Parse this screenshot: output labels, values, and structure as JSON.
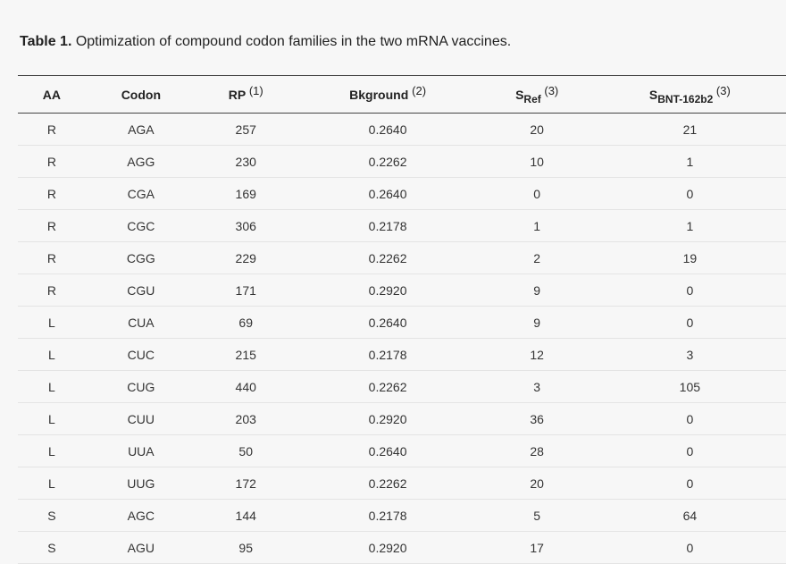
{
  "caption": {
    "label": "Table 1.",
    "text": " Optimization of compound codon families in the two mRNA vaccines."
  },
  "table": {
    "headers": [
      {
        "main": "AA",
        "sub": "",
        "sup": ""
      },
      {
        "main": "Codon",
        "sub": "",
        "sup": ""
      },
      {
        "main": "RP ",
        "sub": "",
        "sup": "(1)"
      },
      {
        "main": "Bkground ",
        "sub": "",
        "sup": "(2)"
      },
      {
        "main": "S",
        "sub": "Ref",
        "sup": " (3)"
      },
      {
        "main": "S",
        "sub": "BNT-162b2",
        "sup": " (3)"
      }
    ],
    "rows": [
      [
        "R",
        "AGA",
        "257",
        "0.2640",
        "20",
        "21"
      ],
      [
        "R",
        "AGG",
        "230",
        "0.2262",
        "10",
        "1"
      ],
      [
        "R",
        "CGA",
        "169",
        "0.2640",
        "0",
        "0"
      ],
      [
        "R",
        "CGC",
        "306",
        "0.2178",
        "1",
        "1"
      ],
      [
        "R",
        "CGG",
        "229",
        "0.2262",
        "2",
        "19"
      ],
      [
        "R",
        "CGU",
        "171",
        "0.2920",
        "9",
        "0"
      ],
      [
        "L",
        "CUA",
        "69",
        "0.2640",
        "9",
        "0"
      ],
      [
        "L",
        "CUC",
        "215",
        "0.2178",
        "12",
        "3"
      ],
      [
        "L",
        "CUG",
        "440",
        "0.2262",
        "3",
        "105"
      ],
      [
        "L",
        "CUU",
        "203",
        "0.2920",
        "36",
        "0"
      ],
      [
        "L",
        "UUA",
        "50",
        "0.2640",
        "28",
        "0"
      ],
      [
        "L",
        "UUG",
        "172",
        "0.2262",
        "20",
        "0"
      ],
      [
        "S",
        "AGC",
        "144",
        "0.2178",
        "5",
        "64"
      ],
      [
        "S",
        "AGU",
        "95",
        "0.2920",
        "17",
        "0"
      ]
    ]
  }
}
